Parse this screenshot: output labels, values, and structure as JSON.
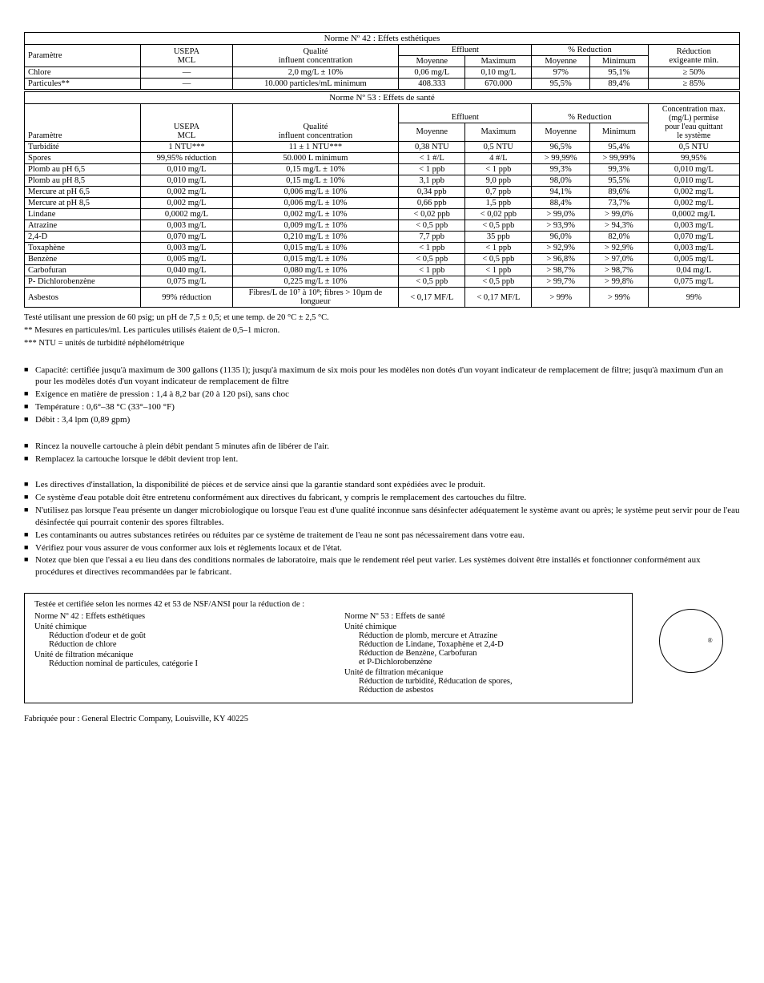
{
  "table1": {
    "title": "Norme Nº 42 : Effets esthétiques",
    "headers": {
      "param": "Paramètre",
      "usepa": "USEPA\nMCL",
      "qualite": "Qualité\ninfluent concentration",
      "effluent": "Effluent",
      "eff_moy": "Moyenne",
      "eff_max": "Maximum",
      "pct_red": "% Reduction",
      "pct_moy": "Moyenne",
      "pct_min": "Minimum",
      "red_min": "Réduction\nexigeante min."
    },
    "rows": [
      [
        "Chlore",
        "—",
        "2,0 mg/L ± 10%",
        "0,06 mg/L",
        "0,10 mg/L",
        "97%",
        "95,1%",
        "≥ 50%"
      ],
      [
        "Particules**",
        "—",
        "10.000 particles/mL minimum",
        "408.333",
        "670.000",
        "95,5%",
        "89,4%",
        "≥ 85%"
      ]
    ]
  },
  "table2": {
    "title": "Norme Nº 53 : Effets de santé",
    "headers": {
      "param": "Paramètre",
      "usepa": "USEPA\nMCL",
      "qualite": "Qualité\ninfluent concentration",
      "effluent": "Effluent",
      "eff_moy": "Moyenne",
      "eff_max": "Maximum",
      "pct_red": "% Reduction",
      "pct_moy": "Moyenne",
      "pct_min": "Minimum",
      "conc": "Concentration max.\n(mg/L) permise\npour l'eau quittant\nle système"
    },
    "rows": [
      [
        "Turbidité",
        "1 NTU***",
        "11 ± 1 NTU***",
        "0,38 NTU",
        "0,5 NTU",
        "96,5%",
        "95,4%",
        "0,5 NTU"
      ],
      [
        "Spores",
        "99,95% réduction",
        "50.000 L minimum",
        "< 1 #/L",
        "4 #/L",
        "> 99,99%",
        "> 99,99%",
        "99,95%"
      ],
      [
        "Plomb au pH 6,5",
        "0,010 mg/L",
        "0,15 mg/L ± 10%",
        "< 1 ppb",
        "< 1 ppb",
        "99,3%",
        "99,3%",
        "0,010 mg/L"
      ],
      [
        "Plomb au pH 8,5",
        "0,010 mg/L",
        "0,15 mg/L ± 10%",
        "3,1 ppb",
        "9,0 ppb",
        "98,0%",
        "95,5%",
        "0,010 mg/L"
      ],
      [
        "Mercure at pH 6,5",
        "0,002 mg/L",
        "0,006 mg/L ± 10%",
        "0,34 ppb",
        "0,7 ppb",
        "94,1%",
        "89,6%",
        "0,002 mg/L"
      ],
      [
        "Mercure at pH 8,5",
        "0,002 mg/L",
        "0,006 mg/L ± 10%",
        "0,66 ppb",
        "1,5 ppb",
        "88,4%",
        "73,7%",
        "0,002 mg/L"
      ],
      [
        "Lindane",
        "0,0002 mg/L",
        "0,002 mg/L ± 10%",
        "< 0,02 ppb",
        "< 0,02 ppb",
        "> 99,0%",
        "> 99,0%",
        "0,0002 mg/L"
      ],
      [
        "Atrazine",
        "0,003 mg/L",
        "0,009 mg/L ± 10%",
        "< 0,5 ppb",
        "< 0,5 ppb",
        "> 93,9%",
        "> 94,3%",
        "0,003 mg/L"
      ],
      [
        "2,4-D",
        "0,070 mg/L",
        "0,210 mg/L ± 10%",
        "7,7 ppb",
        "35 ppb",
        "96,0%",
        "82,0%",
        "0,070 mg/L"
      ],
      [
        "Toxaphène",
        "0,003 mg/L",
        "0,015 mg/L ± 10%",
        "< 1 ppb",
        "< 1 ppb",
        "> 92,9%",
        "> 92,9%",
        "0,003 mg/L"
      ],
      [
        "Benzène",
        "0,005 mg/L",
        "0,015 mg/L ± 10%",
        "< 0,5 ppb",
        "< 0,5 ppb",
        "> 96,8%",
        "> 97,0%",
        "0,005 mg/L"
      ],
      [
        "Carbofuran",
        "0,040 mg/L",
        "0,080 mg/L ± 10%",
        "< 1 ppb",
        "< 1 ppb",
        "> 98,7%",
        "> 98,7%",
        "0,04 mg/L"
      ],
      [
        "P- Dichlorobenzène",
        "0,075 mg/L",
        "0,225 mg/L ± 10%",
        "< 0,5 ppb",
        "< 0,5 ppb",
        "> 99,7%",
        "> 99,8%",
        "0,075 mg/L"
      ],
      [
        "Asbestos",
        "99% réduction",
        "Fibres/L de 10⁷ à 10⁸; fibres > 10µm de longueur",
        "< 0,17 MF/L",
        "< 0,17 MF/L",
        "> 99%",
        "> 99%",
        "99%"
      ]
    ]
  },
  "footnotes": [
    "Testé utilisant une pression de 60 psig; un pH de 7,5 ± 0,5; et une temp. de 20 °C ± 2,5 °C.",
    "** Mesures en particules/ml. Les particules utilisés étaient de 0,5–1 micron.",
    "*** NTU = unités de turbidité néphélométrique"
  ],
  "group1": [
    "Capacité: certifiée jusqu'à maximum de 300 gallons (1135 l); jusqu'à maximum de six mois pour les modèles non dotés d'un voyant indicateur de remplacement de filtre; jusqu'à maximum d'un an pour les modèles dotés d'un voyant indicateur de remplacement de filtre",
    "Exigence en matière de pression : 1,4 à 8,2 bar (20 à 120 psi), sans choc",
    "Température : 0,6°–38 °C (33°–100 °F)",
    "Débit : 3,4 lpm (0,89 gpm)"
  ],
  "group2": [
    "Rincez la nouvelle cartouche à plein débit pendant 5 minutes afin de libérer de l'air.",
    "Remplacez la cartouche lorsque le débit devient trop lent."
  ],
  "group3": [
    "Les directives d'installation, la disponibilité de pièces et de service ainsi que la garantie standard sont expédiées avec le produit.",
    "Ce système d'eau potable doit être entretenu conformément aux directives du fabricant, y compris le remplacement des cartouches du filtre.",
    "N'utilisez pas lorsque l'eau présente un danger microbiologique ou lorsque l'eau est d'une qualité inconnue sans désinfecter adéquatement le système avant ou après; le système peut servir pour de l'eau désinfectée qui pourrait contenir des spores filtrables.",
    "Les contaminants ou autres substances retirées ou réduites par ce système de traitement de l'eau ne sont pas nécessairement dans votre eau.",
    "Vérifiez pour vous assurer de vous conformer aux lois et règlements locaux et de l'état.",
    "Notez que bien que l'essai a eu lieu dans des conditions normales de laboratoire, mais que le rendement réel peut varier. Les systèmes doivent être installés et fonctionner conformément aux procédures et directives recommandées par le fabricant."
  ],
  "cert": {
    "top": "Testée et certifiée selon les normes 42 et 53 de NSF/ANSI pour la réduction de :",
    "col1": {
      "title": "Norme Nº 42 : Effets esthétiques",
      "u1": "Unité chimique",
      "u1s": [
        "Réduction d'odeur et de goût",
        "Réduction de chlore"
      ],
      "u2": "Unité de filtration mécanique",
      "u2s": [
        "Réduction nominal de particules, catégorie I"
      ]
    },
    "col2": {
      "title": "Norme Nº 53 : Effets de santé",
      "u1": "Unité chimique",
      "u1s": [
        "Réduction de plomb, mercure et Atrazine",
        "Réduction de Lindane, Toxaphène et 2,4-D",
        "Réduction de Benzène, Carbofuran\net P-Dichlorobenzène"
      ],
      "u2": "Unité de filtration mécanique",
      "u2s": [
        "Réduction de turbidité, Réducation de spores,",
        "Réduction de asbestos"
      ]
    }
  },
  "mfr": "Fabriquée pour : General Electric Company, Louisville, KY 40225"
}
